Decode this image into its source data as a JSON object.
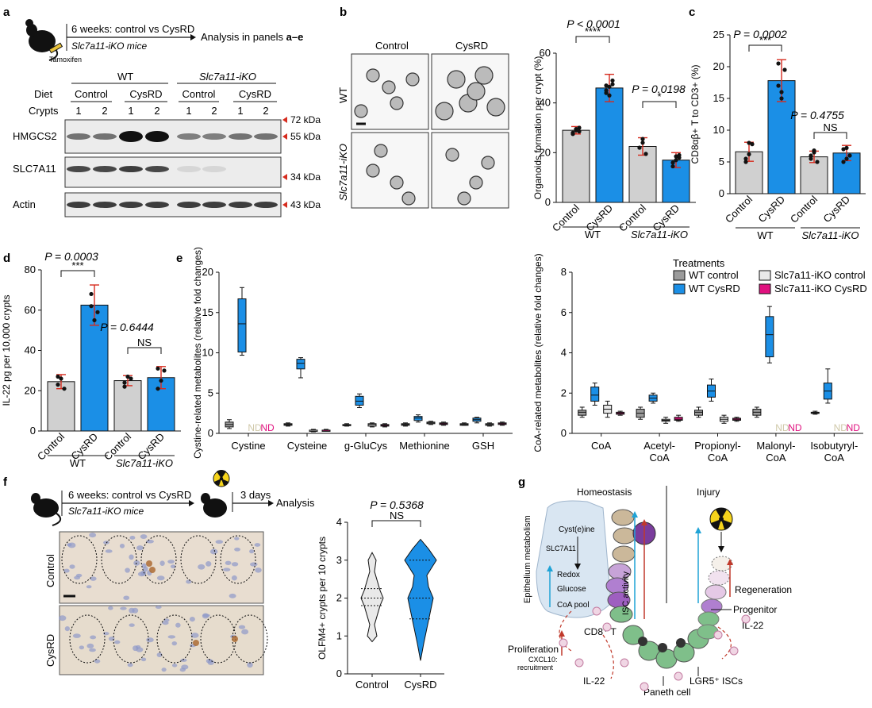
{
  "colors": {
    "grey": "#9b9b9b",
    "blue": "#1b8fe6",
    "lightgrey": "#e9e9e9",
    "pink": "#e0117f",
    "red": "#d62b1e",
    "cyan": "#1fa3d6",
    "darkred": "#c0392b"
  },
  "panel_labels": [
    "a",
    "b",
    "c",
    "d",
    "e",
    "f",
    "g"
  ],
  "panel_a": {
    "timeline": "6 weeks: control vs CysRD",
    "mice": "Slc7a11-iKO mice",
    "tamoxifen": "Tamoxifen",
    "analysis": "Analysis in panels ",
    "analysis_bold": "a–e",
    "wt": "WT",
    "ko": "Slc7a11-iKO",
    "diet_label": "Diet",
    "crypts_label": "Crypts",
    "diets": [
      "Control",
      "CysRD",
      "Control",
      "CysRD"
    ],
    "crypts": [
      "1",
      "2",
      "1",
      "2",
      "1",
      "2",
      "1",
      "2"
    ],
    "rows": [
      "HMGCS2",
      "SLC7A11",
      "Actin"
    ],
    "markers": [
      "72 kDa",
      "55 kDa",
      "34 kDa",
      "43 kDa"
    ]
  },
  "panel_b": {
    "col_control": "Control",
    "col_cysrd": "CysRD",
    "row_wt": "WT",
    "row_ko": "Slc7a11-iKO"
  },
  "chart_data": [
    {
      "id": "b",
      "type": "bar",
      "ylabel": "Organoids formation per crypt (%)",
      "ylim": [
        0,
        60
      ],
      "yticks": [
        0,
        20,
        40,
        60
      ],
      "categories": [
        "Control",
        "CysRD",
        "Control",
        "CysRD"
      ],
      "groups": [
        "WT",
        "Slc7a11-iKO"
      ],
      "values": [
        29,
        46,
        22.5,
        17
      ],
      "errors": [
        1.5,
        5.5,
        3.5,
        3
      ],
      "points": [
        [
          28,
          29,
          30,
          27.5,
          29.5,
          28.5
        ],
        [
          47,
          46.5,
          49,
          44,
          43,
          47.5,
          45
        ],
        [
          22,
          25.5,
          19.5,
          22,
          24
        ],
        [
          16,
          18.5,
          19,
          14.5,
          17,
          18
        ]
      ],
      "annotations": [
        {
          "p": "P < 0.0001",
          "stars": "****"
        },
        {
          "p": "P = 0.0198",
          "stars": "*"
        }
      ]
    },
    {
      "id": "c",
      "type": "bar",
      "ylabel": "CD8αβ+ T to CD3+ (%)",
      "ylim": [
        0,
        25
      ],
      "yticks": [
        0,
        5,
        10,
        15,
        20,
        25
      ],
      "categories": [
        "Control",
        "CysRD",
        "Control",
        "CysRD"
      ],
      "groups": [
        "WT",
        "Slc7a11-iKO"
      ],
      "values": [
        6.6,
        17.8,
        5.8,
        6.4
      ],
      "errors": [
        1.5,
        3.3,
        0.9,
        1.2
      ],
      "points": [
        [
          5,
          6.2,
          7.8,
          5.5,
          8
        ],
        [
          20.5,
          15,
          19.5,
          17,
          16
        ],
        [
          5.5,
          6.5,
          5,
          6,
          6.8
        ],
        [
          5,
          7.2,
          6,
          7,
          5.5
        ]
      ],
      "annotations": [
        {
          "p": "P = 0.0002",
          "stars": "***"
        },
        {
          "p": "P = 0.4755",
          "stars": "NS"
        }
      ]
    },
    {
      "id": "d",
      "type": "bar",
      "ylabel": "IL-22 pg per 10,000 crypts",
      "ylim": [
        0,
        80
      ],
      "yticks": [
        0,
        20,
        40,
        60,
        80
      ],
      "categories": [
        "Control",
        "CysRD",
        "Control",
        "CysRD"
      ],
      "groups": [
        "WT",
        "Slc7a11-iKO"
      ],
      "values": [
        24.5,
        62.5,
        25,
        26.5
      ],
      "errors": [
        3.5,
        10,
        2.5,
        5.5
      ],
      "points": [
        [
          23,
          26,
          21,
          27
        ],
        [
          68,
          55,
          59,
          62
        ],
        [
          24,
          27,
          26,
          22
        ],
        [
          21,
          25,
          30,
          31
        ]
      ],
      "annotations": [
        {
          "p": "P = 0.0003",
          "stars": "***"
        },
        {
          "p": "P = 0.6444",
          "stars": "NS"
        }
      ]
    },
    {
      "id": "e-left",
      "type": "box",
      "ylabel": "Cystine-related metabolites (relative fold changes)",
      "ylim": [
        0,
        20
      ],
      "yticks": [
        0,
        5,
        10,
        15,
        20
      ],
      "categories": [
        "Cystine",
        "Cysteine",
        "g-GluCys",
        "Methionine",
        "GSH"
      ],
      "series": [
        {
          "name": "WT control",
          "boxes": [
            [
              0.6,
              0.8,
              1.1,
              1.4,
              1.7
            ],
            [
              0.9,
              1.0,
              1.1,
              1.2,
              1.3
            ],
            [
              0.9,
              1.0,
              1.0,
              1.1,
              1.2
            ],
            [
              0.9,
              1.0,
              1.1,
              1.2,
              1.3
            ],
            [
              1.0,
              1.0,
              1.1,
              1.2,
              1.3
            ]
          ]
        },
        {
          "name": "WT CysRD",
          "boxes": [
            [
              9.7,
              10.1,
              13.6,
              16.7,
              18.1
            ],
            [
              6.9,
              8.0,
              8.7,
              9.2,
              9.4
            ],
            [
              3.2,
              3.5,
              4.0,
              4.6,
              4.9
            ],
            [
              1.4,
              1.6,
              1.9,
              2.1,
              2.3
            ],
            [
              1.3,
              1.5,
              1.7,
              1.9,
              2.0
            ]
          ]
        },
        {
          "name": "Slc7a11-iKO control",
          "boxes": [
            null,
            [
              0.2,
              0.3,
              0.4,
              0.4,
              0.5
            ],
            [
              0.8,
              0.9,
              1.1,
              1.2,
              1.3
            ],
            [
              1.1,
              1.2,
              1.3,
              1.4,
              1.5
            ],
            [
              0.9,
              1.0,
              1.1,
              1.2,
              1.3
            ]
          ]
        },
        {
          "name": "Slc7a11-iKO CysRD",
          "boxes": [
            null,
            [
              0.3,
              0.3,
              0.4,
              0.4,
              0.5
            ],
            [
              0.8,
              0.9,
              1.0,
              1.1,
              1.2
            ],
            [
              1.0,
              1.1,
              1.2,
              1.3,
              1.4
            ],
            [
              1.0,
              1.1,
              1.2,
              1.3,
              1.4
            ]
          ]
        }
      ],
      "nd": [
        {
          "category": "Cystine",
          "series": "Slc7a11-iKO control",
          "label": "ND"
        },
        {
          "category": "Cystine",
          "series": "Slc7a11-iKO CysRD",
          "label": "ND"
        }
      ]
    },
    {
      "id": "e-right",
      "type": "box",
      "ylabel": "CoA-related metabolites (relative fold changes)",
      "ylim": [
        0,
        8
      ],
      "yticks": [
        0,
        2,
        4,
        6,
        8
      ],
      "categories": [
        "CoA",
        "Acetyl-CoA",
        "Propionyl-CoA",
        "Malonyl-CoA",
        "Isobutyryl-CoA"
      ],
      "series": [
        {
          "name": "WT control",
          "boxes": [
            [
              0.8,
              0.9,
              1.05,
              1.15,
              1.3
            ],
            [
              0.7,
              0.8,
              1.0,
              1.2,
              1.3
            ],
            [
              0.8,
              0.9,
              1.05,
              1.15,
              1.3
            ],
            [
              0.8,
              0.9,
              1.05,
              1.2,
              1.3
            ],
            [
              0.95,
              1.0,
              1.02,
              1.05,
              1.1
            ]
          ]
        },
        {
          "name": "WT CysRD",
          "boxes": [
            [
              1.4,
              1.6,
              1.9,
              2.3,
              2.5
            ],
            [
              1.5,
              1.6,
              1.75,
              1.9,
              2.0
            ],
            [
              1.6,
              1.8,
              2.1,
              2.4,
              2.7
            ],
            [
              3.5,
              3.8,
              4.9,
              5.8,
              6.3
            ],
            [
              1.5,
              1.7,
              2.1,
              2.5,
              3.2
            ]
          ]
        },
        {
          "name": "Slc7a11-iKO control",
          "boxes": [
            [
              0.8,
              1.0,
              1.2,
              1.4,
              1.6
            ],
            [
              0.5,
              0.6,
              0.65,
              0.7,
              0.8
            ],
            [
              0.5,
              0.6,
              0.7,
              0.8,
              0.9
            ],
            null,
            null
          ]
        },
        {
          "name": "Slc7a11-iKO CysRD",
          "boxes": [
            [
              0.9,
              0.95,
              1.0,
              1.05,
              1.1
            ],
            [
              0.6,
              0.65,
              0.7,
              0.8,
              0.9
            ],
            [
              0.6,
              0.65,
              0.7,
              0.75,
              0.8
            ],
            null,
            null
          ]
        }
      ],
      "nd": [
        {
          "category": "Malonyl-CoA",
          "series": "Slc7a11-iKO control",
          "label": "ND"
        },
        {
          "category": "Malonyl-CoA",
          "series": "Slc7a11-iKO CysRD",
          "label": "ND"
        },
        {
          "category": "Isobutyryl-CoA",
          "series": "Slc7a11-iKO control",
          "label": "ND"
        },
        {
          "category": "Isobutyryl-CoA",
          "series": "Slc7a11-iKO CysRD",
          "label": "ND"
        }
      ]
    },
    {
      "id": "f",
      "type": "violin",
      "ylabel": "OLFM4+ crypts per 10 crypts",
      "ylim": [
        0,
        4
      ],
      "yticks": [
        0,
        1,
        2,
        3,
        4
      ],
      "categories": [
        "Control",
        "CysRD"
      ],
      "annotations": [
        {
          "p": "P = 0.5368",
          "stars": "NS"
        }
      ],
      "violins": [
        {
          "min": 0.85,
          "max": 3.2,
          "quartiles": [
            1.8,
            2.0,
            2.25
          ]
        },
        {
          "min": 0.35,
          "max": 3.55,
          "quartiles": [
            1.45,
            2.0,
            3.0
          ]
        }
      ]
    }
  ],
  "legend_e": {
    "title": "Treatments",
    "items": [
      "WT control",
      "WT CysRD",
      "Slc7a11-iKO control",
      "Slc7a11-iKO CysRD"
    ]
  },
  "panel_f": {
    "timeline": "6 weeks: control vs CysRD",
    "mice": "Slc7a11-iKO mice",
    "days": "3 days",
    "analysis": "Analysis",
    "row_control": "Control",
    "row_cysrd": "CysRD"
  },
  "panel_g": {
    "homeostasis": "Homeostasis",
    "injury": "Injury",
    "epi": "Epithelium metabolism",
    "cyst": "Cyst(e)ine",
    "slc": "SLC7A11",
    "redox": "Redox",
    "glucose": "Glucose",
    "coa": "CoA pool",
    "isc": "ISC activity",
    "cd8": "CD8⁺ T",
    "prolif": "Proliferation",
    "cxcl": "CXCL10:",
    "recruit": "recruitment",
    "il22a": "IL-22",
    "il22b": "IL-22",
    "paneth": "Paneth cell",
    "lgr5": "LGR5⁺ ISCs",
    "regen": "Regeneration",
    "progenitor": "Progenitor"
  }
}
